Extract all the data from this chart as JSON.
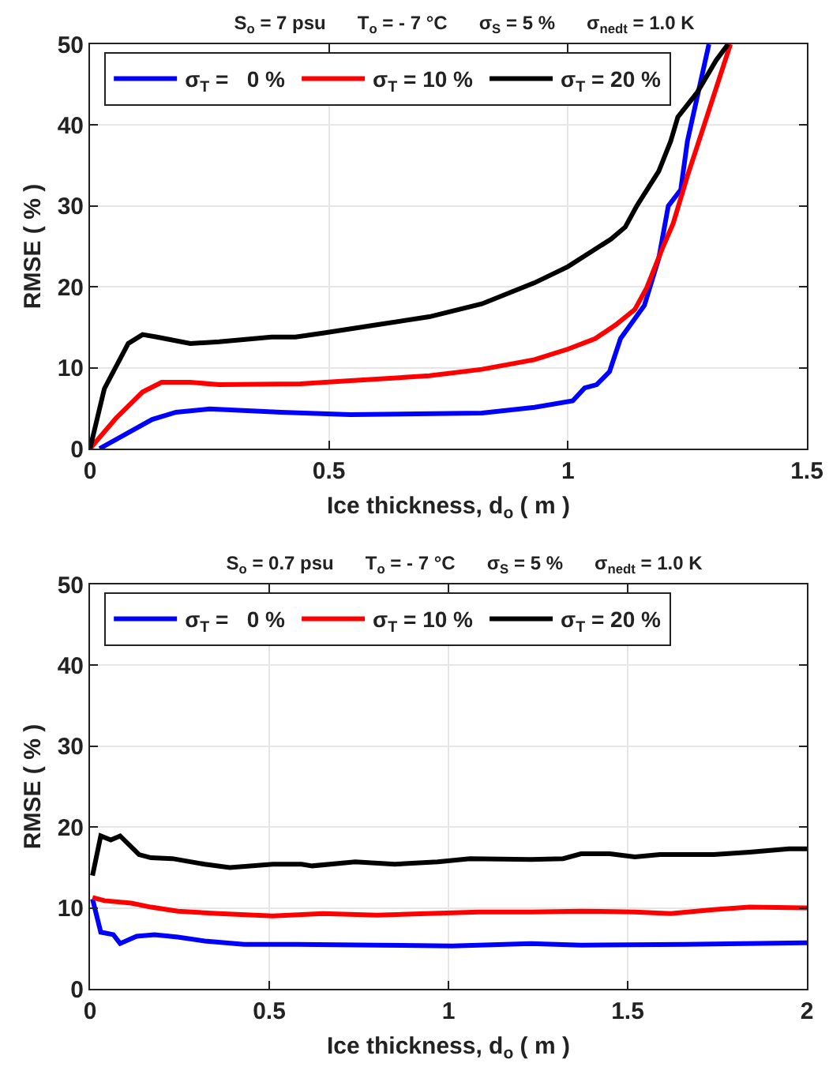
{
  "chart_data": [
    {
      "type": "line",
      "title": "S$_{o}$ = 7 psu      T$_{o}$ = - 7 °C      σ$_{S}$ = 5 %      σ$_{nedt}$ = 1.0 K",
      "xlabel": "Ice thickness, d$_{o}$ ( m )",
      "ylabel": "RMSE ( % )",
      "xlim": [
        0,
        1.5
      ],
      "xticks": [
        0,
        0.5,
        1,
        1.5
      ],
      "ylim": [
        0,
        50
      ],
      "yticks": [
        0,
        10,
        20,
        30,
        40,
        50
      ],
      "grid": true,
      "legend": "top left",
      "line_style": "solid",
      "marker": "none",
      "series": [
        {
          "name": "σ$_{T}$ =   0 %",
          "color": "#0000ff",
          "x": [
            0.02,
            0.13,
            0.18,
            0.25,
            0.4,
            0.545,
            0.82,
            0.93,
            1.01,
            1.035,
            1.06,
            1.087,
            1.11,
            1.16,
            1.19,
            1.21,
            1.236,
            1.25,
            1.295
          ],
          "values": [
            0,
            3.6,
            4.5,
            4.9,
            4.5,
            4.2,
            4.4,
            5.1,
            5.9,
            7.5,
            7.9,
            9.5,
            13.6,
            17.7,
            23.5,
            30,
            32,
            38,
            50
          ]
        },
        {
          "name": "σ$_{T}$ = 10 %",
          "color": "#ff0000",
          "x": [
            0,
            0.055,
            0.11,
            0.15,
            0.21,
            0.27,
            0.44,
            0.545,
            0.71,
            0.82,
            0.93,
            1.0,
            1.057,
            1.1,
            1.14,
            1.165,
            1.2,
            1.22,
            1.25,
            1.285,
            1.34
          ],
          "values": [
            0,
            3.8,
            7,
            8.2,
            8.2,
            7.9,
            8.0,
            8.4,
            9.0,
            9.8,
            11,
            12.3,
            13.6,
            15.3,
            17.2,
            19.9,
            25.1,
            27.8,
            33.7,
            40,
            50
          ]
        },
        {
          "name": "σ$_{T}$ = 20 %",
          "color": "#000000",
          "x": [
            0,
            0.03,
            0.08,
            0.11,
            0.14,
            0.21,
            0.27,
            0.38,
            0.43,
            0.49,
            0.6,
            0.71,
            0.82,
            0.93,
            1.0,
            1.09,
            1.12,
            1.144,
            1.19,
            1.215,
            1.23,
            1.27,
            1.31,
            1.335
          ],
          "values": [
            0,
            7.4,
            13,
            14.1,
            13.8,
            13,
            13.2,
            13.8,
            13.8,
            14.3,
            15.3,
            16.3,
            17.9,
            20.5,
            22.5,
            25.9,
            27.4,
            30,
            34.3,
            38,
            41,
            44,
            48,
            50
          ]
        }
      ]
    },
    {
      "type": "line",
      "title": "S$_{o}$ = 0.7 psu      T$_{o}$ = - 7 °C      σ$_{S}$ = 5 %      σ$_{nedt}$ = 1.0 K",
      "xlabel": "Ice thickness, d$_{o}$ ( m )",
      "ylabel": "RMSE ( % )",
      "xlim": [
        0,
        2
      ],
      "xticks": [
        0,
        0.5,
        1,
        1.5,
        2
      ],
      "ylim": [
        0,
        50
      ],
      "yticks": [
        0,
        10,
        20,
        30,
        40,
        50
      ],
      "grid": true,
      "legend": "top left",
      "line_style": "solid",
      "marker": "none",
      "series": [
        {
          "name": "σ$_{T}$ =   0 %",
          "color": "#0000ff",
          "x": [
            0.007,
            0.03,
            0.065,
            0.084,
            0.13,
            0.18,
            0.245,
            0.32,
            0.43,
            0.58,
            0.8,
            1.01,
            1.085,
            1.23,
            1.37,
            1.66,
            2.0
          ],
          "values": [
            11.1,
            7.0,
            6.7,
            5.6,
            6.5,
            6.7,
            6.4,
            5.9,
            5.5,
            5.5,
            5.4,
            5.3,
            5.4,
            5.6,
            5.4,
            5.5,
            5.7
          ]
        },
        {
          "name": "σ$_{T}$ = 10 %",
          "color": "#ff0000",
          "x": [
            0.007,
            0.04,
            0.115,
            0.17,
            0.245,
            0.36,
            0.51,
            0.65,
            0.8,
            0.94,
            1.085,
            1.23,
            1.37,
            1.52,
            1.62,
            1.74,
            1.84,
            2.0
          ],
          "values": [
            11.3,
            10.9,
            10.6,
            10.1,
            9.6,
            9.3,
            9.0,
            9.3,
            9.1,
            9.3,
            9.5,
            9.5,
            9.6,
            9.5,
            9.3,
            9.8,
            10.1,
            10.0
          ]
        },
        {
          "name": "σ$_{T}$ = 20 %",
          "color": "#000000",
          "x": [
            0.007,
            0.03,
            0.058,
            0.084,
            0.137,
            0.17,
            0.23,
            0.32,
            0.39,
            0.51,
            0.59,
            0.62,
            0.74,
            0.85,
            0.97,
            1.06,
            1.23,
            1.32,
            1.37,
            1.45,
            1.52,
            1.59,
            1.74,
            1.84,
            1.95,
            2.0
          ],
          "values": [
            14.0,
            18.9,
            18.4,
            18.9,
            16.6,
            16.2,
            16.1,
            15.4,
            15.0,
            15.4,
            15.4,
            15.2,
            15.7,
            15.4,
            15.7,
            16.1,
            16.0,
            16.1,
            16.7,
            16.7,
            16.3,
            16.6,
            16.6,
            16.9,
            17.3,
            17.3
          ]
        }
      ]
    }
  ]
}
